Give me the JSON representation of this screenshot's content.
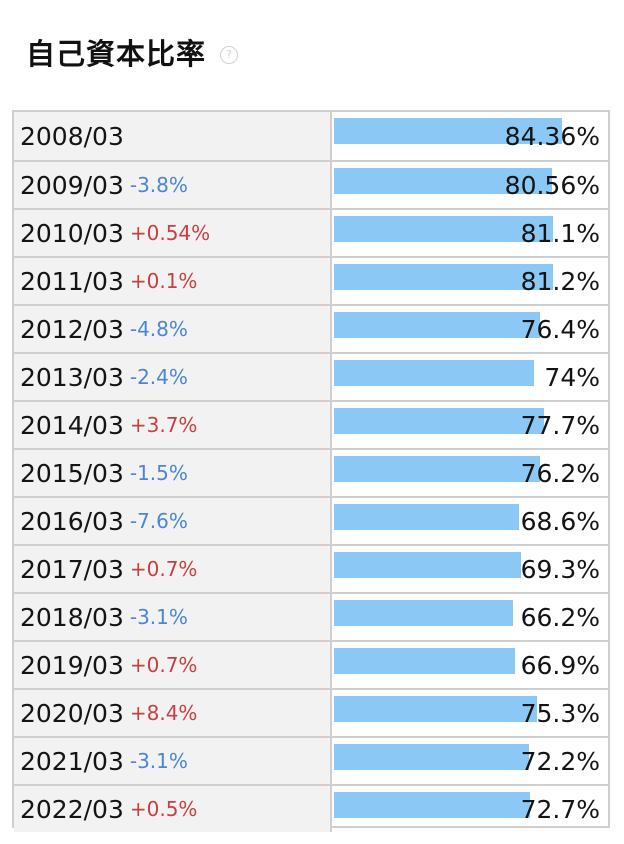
{
  "page": {
    "title": "自己資本比率",
    "help_icon": "?"
  },
  "colors": {
    "bar": "#8bc8f6",
    "negative_change": "#4a86d6",
    "positive_change": "#c8413f"
  },
  "chart_data": {
    "type": "bar",
    "orientation": "horizontal",
    "title": "自己資本比率",
    "categories": [
      "2008/03",
      "2009/03",
      "2010/03",
      "2011/03",
      "2012/03",
      "2013/03",
      "2014/03",
      "2015/03",
      "2016/03",
      "2017/03",
      "2018/03",
      "2019/03",
      "2020/03",
      "2021/03",
      "2022/03"
    ],
    "values": [
      84.36,
      80.56,
      81.1,
      81.2,
      76.4,
      74,
      77.7,
      76.2,
      68.6,
      69.3,
      66.2,
      66.9,
      75.3,
      72.2,
      72.7
    ],
    "value_labels": [
      "84.36%",
      "80.56%",
      "81.1%",
      "81.2%",
      "76.4%",
      "74%",
      "77.7%",
      "76.2%",
      "68.6%",
      "69.3%",
      "66.2%",
      "66.9%",
      "75.3%",
      "72.2%",
      "72.7%"
    ],
    "changes": [
      "",
      "-3.8%",
      "+0.54%",
      "+0.1%",
      "-4.8%",
      "-2.4%",
      "+3.7%",
      "-1.5%",
      "-7.6%",
      "+0.7%",
      "-3.1%",
      "+0.7%",
      "+8.4%",
      "-3.1%",
      "+0.5%"
    ],
    "xlim": [
      0,
      100
    ]
  }
}
